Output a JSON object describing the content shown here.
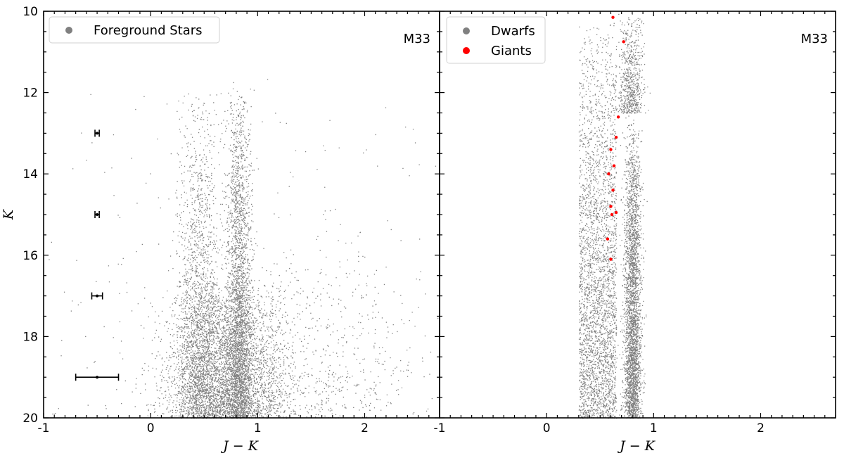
{
  "chart_data": [
    {
      "type": "scatter",
      "panel_label": "M33",
      "xlabel": "J − K",
      "ylabel": "K",
      "xlim": [
        -1,
        2.7
      ],
      "ylim": [
        20,
        10
      ],
      "y_inverted": true,
      "x_ticks": [
        "-1",
        "0",
        "1",
        "2"
      ],
      "y_ticks": [
        "10",
        "12",
        "14",
        "16",
        "18",
        "20"
      ],
      "legend_position": "top-left",
      "series": [
        {
          "name": "Foreground Stars",
          "color": "#808080",
          "density_components": [
            {
              "x_center": 0.45,
              "x_sigma": 0.1,
              "y_min": 11.9,
              "y_max": 20.0,
              "weight": 0.2
            },
            {
              "x_center": 0.82,
              "x_sigma": 0.06,
              "y_min": 11.7,
              "y_max": 20.0,
              "weight": 0.28
            },
            {
              "x_center": 0.72,
              "x_sigma": 0.28,
              "y_min": 16.5,
              "y_max": 20.0,
              "weight": 0.42
            },
            {
              "x_center": 1.6,
              "x_sigma": 0.45,
              "y_min": 15.8,
              "y_max": 20.0,
              "weight": 0.06
            },
            {
              "x_center": 0.9,
              "x_sigma": 1.2,
              "y_min": 11.5,
              "y_max": 20.0,
              "weight": 0.04
            }
          ]
        }
      ],
      "error_bars": [
        {
          "x": -0.5,
          "y": 13,
          "xerr": 0.02
        },
        {
          "x": -0.5,
          "y": 15,
          "xerr": 0.02
        },
        {
          "x": -0.5,
          "y": 17,
          "xerr": 0.05
        },
        {
          "x": -0.5,
          "y": 19,
          "xerr": 0.2
        }
      ]
    },
    {
      "type": "scatter",
      "panel_label": "M33",
      "xlabel": "J − K",
      "ylabel": "",
      "xlim": [
        -1,
        2.7
      ],
      "ylim": [
        20,
        10
      ],
      "y_inverted": true,
      "x_ticks": [
        "-1",
        "0",
        "1",
        "2"
      ],
      "legend_position": "top-left",
      "series": [
        {
          "name": "Dwarfs",
          "color": "#808080",
          "density_components": [
            {
              "x_min": 0.3,
              "x_max": 0.65,
              "y_min": 10.0,
              "y_max": 20.0,
              "weight": 0.45
            },
            {
              "x_center": 0.8,
              "x_sigma": 0.04,
              "y_min": 12.5,
              "y_max": 20.0,
              "weight": 0.45
            },
            {
              "x_center": 0.78,
              "x_sigma": 0.06,
              "y_min": 10.0,
              "y_max": 12.5,
              "weight": 0.1
            }
          ]
        },
        {
          "name": "Giants",
          "color": "#ff0000",
          "points": [
            [
              0.62,
              10.15
            ],
            [
              0.72,
              10.75
            ],
            [
              0.67,
              12.6
            ],
            [
              0.65,
              13.1
            ],
            [
              0.6,
              13.4
            ],
            [
              0.63,
              13.8
            ],
            [
              0.58,
              14.0
            ],
            [
              0.62,
              14.4
            ],
            [
              0.6,
              14.8
            ],
            [
              0.65,
              14.95
            ],
            [
              0.61,
              15.0
            ],
            [
              0.57,
              15.6
            ],
            [
              0.6,
              16.1
            ]
          ]
        }
      ]
    }
  ]
}
